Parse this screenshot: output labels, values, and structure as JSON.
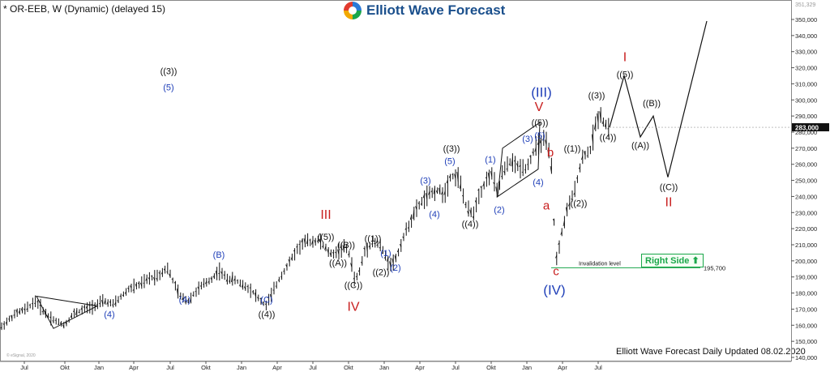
{
  "title": "* OR-EEB, W (Dynamic) (delayed 15)",
  "brand": "Elliott Wave Forecast",
  "footer": "Elliott Wave Forecast Daily Updated 08.02.2020",
  "right_side_label": "Right Side",
  "copyright": "© eSignal, 2020",
  "chart_data": {
    "type": "ohlc",
    "y_axis": {
      "min": 140000,
      "max": 350000,
      "step": 10000,
      "side": "right"
    },
    "y_tick_labels": [
      "140,000",
      "150,000",
      "160,000",
      "170,000",
      "180,000",
      "190,000",
      "200,000",
      "210,000",
      "220,000",
      "230,000",
      "240,000",
      "250,000",
      "260,000",
      "270,000",
      "280,000",
      "290,000",
      "300,000",
      "310,000",
      "320,000",
      "330,000",
      "340,000",
      "350,000"
    ],
    "x_tick_labels": [
      "Jul",
      "Okt",
      "Jan",
      "Apr",
      "Jul",
      "Okt",
      "Jan",
      "Apr",
      "Jul",
      "Okt",
      "Jan",
      "Apr",
      "Jul",
      "Okt",
      "Jan",
      "Apr",
      "Jul"
    ],
    "current_price": {
      "label": "283,000",
      "value": 283000
    },
    "top_price_label": "351,329",
    "invalidation": {
      "label": "Invalidation level",
      "value": 195700,
      "value_label": "195,700"
    },
    "price_path": [
      [
        0,
        158000
      ],
      [
        10,
        163000
      ],
      [
        22,
        168000
      ],
      [
        32,
        170000
      ],
      [
        44,
        175000
      ],
      [
        55,
        168000
      ],
      [
        67,
        163000
      ],
      [
        80,
        160000
      ],
      [
        90,
        167000
      ],
      [
        104,
        170000
      ],
      [
        116,
        172000
      ],
      [
        128,
        175000
      ],
      [
        140,
        173000
      ],
      [
        150,
        178000
      ],
      [
        160,
        183000
      ],
      [
        172,
        185000
      ],
      [
        184,
        189000
      ],
      [
        196,
        191000
      ],
      [
        206,
        196000
      ],
      [
        214,
        187000
      ],
      [
        222,
        178000
      ],
      [
        232,
        175000
      ],
      [
        240,
        180000
      ],
      [
        250,
        185000
      ],
      [
        262,
        189000
      ],
      [
        270,
        194000
      ],
      [
        280,
        189000
      ],
      [
        290,
        188000
      ],
      [
        300,
        185000
      ],
      [
        310,
        182000
      ],
      [
        320,
        176000
      ],
      [
        328,
        172000
      ],
      [
        336,
        180000
      ],
      [
        346,
        190000
      ],
      [
        356,
        198000
      ],
      [
        366,
        207000
      ],
      [
        376,
        212000
      ],
      [
        386,
        212000
      ],
      [
        394,
        213000
      ],
      [
        400,
        209000
      ],
      [
        408,
        204000
      ],
      [
        418,
        206000
      ],
      [
        426,
        209000
      ],
      [
        432,
        203000
      ],
      [
        438,
        187000
      ],
      [
        444,
        194000
      ],
      [
        450,
        206000
      ],
      [
        460,
        212000
      ],
      [
        470,
        209000
      ],
      [
        478,
        200000
      ],
      [
        484,
        198000
      ],
      [
        490,
        203000
      ],
      [
        498,
        215000
      ],
      [
        506,
        224000
      ],
      [
        516,
        234000
      ],
      [
        526,
        240000
      ],
      [
        536,
        243000
      ],
      [
        542,
        244000
      ],
      [
        548,
        241000
      ],
      [
        556,
        253000
      ],
      [
        566,
        252000
      ],
      [
        576,
        232000
      ],
      [
        584,
        229000
      ],
      [
        590,
        240000
      ],
      [
        598,
        248000
      ],
      [
        606,
        255000
      ],
      [
        614,
        242000
      ],
      [
        620,
        255000
      ],
      [
        630,
        262000
      ],
      [
        640,
        258000
      ],
      [
        650,
        258000
      ],
      [
        656,
        265000
      ],
      [
        660,
        270000
      ],
      [
        666,
        273000
      ],
      [
        672,
        276000
      ],
      [
        676,
        270000
      ],
      [
        680,
        262000
      ],
      [
        684,
        220000
      ],
      [
        687,
        200000
      ],
      [
        692,
        215000
      ],
      [
        700,
        232000
      ],
      [
        708,
        242000
      ],
      [
        714,
        255000
      ],
      [
        720,
        266000
      ],
      [
        728,
        268000
      ],
      [
        734,
        283000
      ],
      [
        740,
        292000
      ],
      [
        746,
        285000
      ],
      [
        752,
        283000
      ]
    ],
    "projection": [
      [
        752,
        283000
      ],
      [
        770,
        315000
      ],
      [
        790,
        277000
      ],
      [
        806,
        290000
      ],
      [
        824,
        252000
      ],
      [
        872,
        349000
      ]
    ],
    "triangles": [
      {
        "points": [
          [
            45,
            178000
          ],
          [
            120,
            172000
          ],
          [
            66,
            158000
          ]
        ]
      },
      {
        "points": [
          [
            614,
            240000
          ],
          [
            620,
            270000
          ],
          [
            666,
            286000
          ],
          [
            664,
            257000
          ]
        ]
      }
    ],
    "labels": [
      {
        "text": "((3))",
        "x": 208,
        "y": 316000,
        "color": "#111"
      },
      {
        "text": "(5)",
        "x": 208,
        "y": 306000,
        "color": "#1f3fb8"
      },
      {
        "text": "(A)",
        "x": 228,
        "y": 174000,
        "color": "#1f3fb8"
      },
      {
        "text": "(B)",
        "x": 270,
        "y": 202000,
        "color": "#1f3fb8"
      },
      {
        "text": "(4)",
        "x": 135,
        "y": 165000,
        "color": "#1f3fb8"
      },
      {
        "text": "(C)",
        "x": 329,
        "y": 174000,
        "color": "#1f3fb8"
      },
      {
        "text": "((4))",
        "x": 329,
        "y": 165000,
        "color": "#111"
      },
      {
        "text": "III",
        "x": 402,
        "y": 226000,
        "color": "#c81e1e",
        "size": 16
      },
      {
        "text": "((5))",
        "x": 402,
        "y": 213000,
        "color": "#111"
      },
      {
        "text": "((B))",
        "x": 427,
        "y": 208000,
        "color": "#111"
      },
      {
        "text": "((A))",
        "x": 417,
        "y": 197000,
        "color": "#111"
      },
      {
        "text": "((1))",
        "x": 460,
        "y": 212000,
        "color": "#111"
      },
      {
        "text": "((C))",
        "x": 436,
        "y": 183000,
        "color": "#111"
      },
      {
        "text": "IV",
        "x": 436,
        "y": 169000,
        "color": "#c81e1e",
        "size": 16
      },
      {
        "text": "(1)",
        "x": 476,
        "y": 203000,
        "color": "#1f3fb8"
      },
      {
        "text": "((2))",
        "x": 470,
        "y": 191000,
        "color": "#111"
      },
      {
        "text": "(2)",
        "x": 488,
        "y": 194000,
        "color": "#1f3fb8"
      },
      {
        "text": "(3)",
        "x": 525,
        "y": 248000,
        "color": "#1f3fb8"
      },
      {
        "text": "(4)",
        "x": 536,
        "y": 227000,
        "color": "#1f3fb8"
      },
      {
        "text": "((3))",
        "x": 557,
        "y": 268000,
        "color": "#111"
      },
      {
        "text": "(5)",
        "x": 555,
        "y": 260000,
        "color": "#1f3fb8"
      },
      {
        "text": "((4))",
        "x": 580,
        "y": 221000,
        "color": "#111"
      },
      {
        "text": "(1)",
        "x": 605,
        "y": 261000,
        "color": "#1f3fb8"
      },
      {
        "text": "(2)",
        "x": 616,
        "y": 230000,
        "color": "#1f3fb8"
      },
      {
        "text": "(III)",
        "x": 668,
        "y": 302000,
        "color": "#1f3fb8",
        "size": 17
      },
      {
        "text": "V",
        "x": 665,
        "y": 293000,
        "color": "#c81e1e",
        "size": 16
      },
      {
        "text": "((5))",
        "x": 666,
        "y": 284000,
        "color": "#111"
      },
      {
        "text": "(3)",
        "x": 651,
        "y": 274000,
        "color": "#1f3fb8"
      },
      {
        "text": "(5)",
        "x": 666,
        "y": 276000,
        "color": "#1f3fb8"
      },
      {
        "text": "(4)",
        "x": 664,
        "y": 247000,
        "color": "#1f3fb8"
      },
      {
        "text": "b",
        "x": 679,
        "y": 265000,
        "color": "#c81e1e",
        "size": 15
      },
      {
        "text": "a",
        "x": 674,
        "y": 232000,
        "color": "#c81e1e",
        "size": 15
      },
      {
        "text": "c",
        "x": 686,
        "y": 191000,
        "color": "#c81e1e",
        "size": 15
      },
      {
        "text": "(IV)",
        "x": 684,
        "y": 179000,
        "color": "#1f3fb8",
        "size": 17
      },
      {
        "text": "((1))",
        "x": 706,
        "y": 268000,
        "color": "#111"
      },
      {
        "text": "((2))",
        "x": 714,
        "y": 234000,
        "color": "#111"
      },
      {
        "text": "((3))",
        "x": 736,
        "y": 301000,
        "color": "#111"
      },
      {
        "text": "((4))",
        "x": 750,
        "y": 275000,
        "color": "#111"
      },
      {
        "text": "I",
        "x": 771,
        "y": 324000,
        "color": "#c81e1e",
        "size": 16
      },
      {
        "text": "((5))",
        "x": 771,
        "y": 314000,
        "color": "#111"
      },
      {
        "text": "((B))",
        "x": 804,
        "y": 296000,
        "color": "#111"
      },
      {
        "text": "((A))",
        "x": 790,
        "y": 270000,
        "color": "#111"
      },
      {
        "text": "((C))",
        "x": 825,
        "y": 244000,
        "color": "#111"
      },
      {
        "text": "II",
        "x": 825,
        "y": 234000,
        "color": "#c81e1e",
        "size": 16
      }
    ]
  }
}
